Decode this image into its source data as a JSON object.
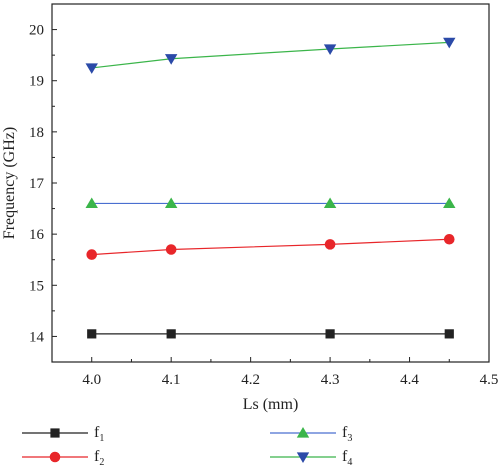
{
  "chart_data": {
    "type": "line",
    "xlabel": "Ls (mm)",
    "ylabel": "Frequency (GHz)",
    "xlim": [
      3.95,
      4.5
    ],
    "ylim": [
      13.5,
      20.5
    ],
    "xticks": [
      4.0,
      4.1,
      4.2,
      4.3,
      4.4,
      4.5
    ],
    "xtick_labels": [
      "4.0",
      "4.1",
      "4.2",
      "4.3",
      "4.4",
      "4.5"
    ],
    "yticks": [
      14,
      15,
      16,
      17,
      18,
      19,
      20
    ],
    "ytick_labels": [
      "14",
      "15",
      "16",
      "17",
      "18",
      "19",
      "20"
    ],
    "x": [
      4.0,
      4.1,
      4.3,
      4.45
    ],
    "grid": false,
    "legend_position": "bottom",
    "series": [
      {
        "name": "f1",
        "label_main": "f",
        "label_sub": "1",
        "marker": "square",
        "color": "#222222",
        "values": [
          14.05,
          14.05,
          14.05,
          14.05
        ]
      },
      {
        "name": "f2",
        "label_main": "f",
        "label_sub": "2",
        "marker": "circle",
        "color": "#e8262a",
        "values": [
          15.6,
          15.7,
          15.8,
          15.9
        ]
      },
      {
        "name": "f3",
        "label_main": "f",
        "label_sub": "3",
        "marker": "triangle-up",
        "color": "#3bb54a",
        "line_color": "#4a6fd0",
        "values": [
          16.6,
          16.6,
          16.6,
          16.6
        ]
      },
      {
        "name": "f4",
        "label_main": "f",
        "label_sub": "4",
        "marker": "triangle-down",
        "color": "#2b4aa8",
        "line_color": "#3bb54a",
        "values": [
          19.25,
          19.43,
          19.62,
          19.75
        ]
      }
    ]
  }
}
